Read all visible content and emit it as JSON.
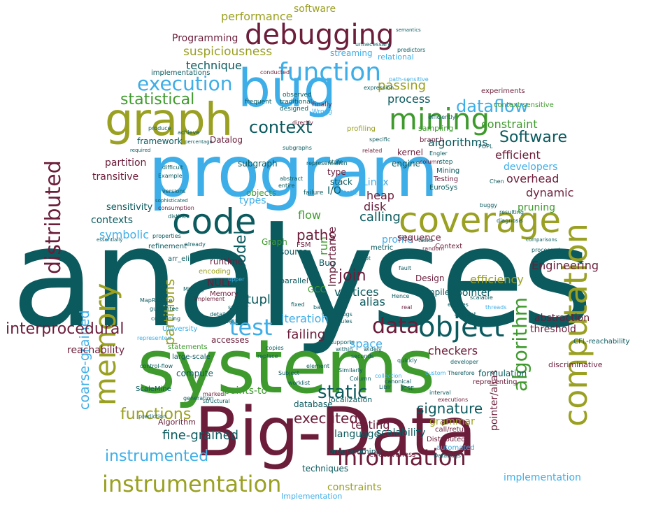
{
  "palette": {
    "teal": "#0b5a5e",
    "sky": "#3eaee8",
    "olive": "#9aa021",
    "green": "#3f9a2e",
    "maroon": "#6b1d3a"
  },
  "words": {
    "analyses": "analyses",
    "systems": "systems",
    "big_data": "Big-Data",
    "program": "program",
    "bug": "bug",
    "graph": "graph",
    "code": "code",
    "coverage": "coverage",
    "computation": "computation",
    "memory": "memory",
    "debugging": "debugging",
    "function": "function",
    "mining": "mining",
    "execution": "execution",
    "object": "object",
    "test": "test",
    "data": "data",
    "context": "context",
    "statistical": "statistical",
    "dataflow": "dataflow",
    "information": "information",
    "instrumentation": "instrumentation",
    "distributed": "distributed",
    "algorithm": "algorithm",
    "interprocedural": "interprocedural",
    "software_top": "software",
    "performance": "performance",
    "programming_top": "Programming",
    "suspiciousness": "suspiciousness",
    "technique": "technique",
    "passing": "passing",
    "process": "process",
    "constraint": "constraint",
    "software_mid": "Software",
    "algorithms": "algorithms",
    "efficient": "efficient",
    "developers": "developers",
    "overhead": "overhead",
    "partition": "partition",
    "transitive": "transitive",
    "dynamic": "dynamic",
    "pruning": "pruning",
    "sensitivity": "sensitivity",
    "contexts": "contexts",
    "symbolic": "symbolic",
    "calling": "calling",
    "paths": "paths",
    "flow": "flow",
    "heap": "heap",
    "disk": "disk",
    "linux": "Linux",
    "run": "run",
    "model": "model",
    "profile": "profile",
    "sequence": "sequence",
    "join": "join",
    "vertices": "vertices",
    "partitions": "partitions",
    "tuple": "tuple",
    "alias": "alias",
    "null": "NULL",
    "pointer": "pointer",
    "efficiency": "efficiency",
    "engineering": "Engineering",
    "importance": "Importance",
    "iteration": "iteration",
    "failing": "failing",
    "space": "space",
    "checkers": "checkers",
    "abstraction": "abstraction",
    "threshold": "threshold",
    "reachability": "reachability",
    "coarse_grained": "coarse-grained",
    "functions": "functions",
    "static": "static",
    "executed": "executed",
    "signature": "signature",
    "fine_grained": "fine-grained",
    "instrumented": "instrumented",
    "testing": "testing",
    "grammar": "grammar",
    "pointer_alias": "pointer/alias",
    "language": "language",
    "scalability": "scalability",
    "implementation": "implementation",
    "techniques": "techniques",
    "constraints": "constraints",
    "implementation_cap": "Implementation",
    "compute": "compute",
    "points_to": "points-to",
    "accesses": "accesses",
    "graph_small": "Graph",
    "objects": "objects",
    "types": "types",
    "subgraph": "subgraph",
    "type": "type",
    "stack": "stack",
    "io": "I/O",
    "kernel": "kernel",
    "engine": "engine",
    "datalog": "Datalog",
    "framework": "framework",
    "streaming": "streaming",
    "relational": "relational",
    "implementations": "implementations",
    "experiments": "experiments",
    "sampling": "sampling",
    "context_sensitive": "context-sensitive",
    "refinement": "refinement",
    "runtime": "runtime",
    "memory_cap": "Memory",
    "bug_small": "Bug",
    "source": "source",
    "gcc": "GCC",
    "design": "Design",
    "compiler": "compiler",
    "arr_elim": "arr_elim",
    "encoding": "encoding",
    "parallel": "parallel",
    "mining_cap": "Mining",
    "testing_cap": "Testing",
    "eurosys": "EuroSys",
    "statements": "statements",
    "large_scale": "large-scale",
    "university": "University",
    "scalemine": "ScaleMine",
    "algorithm_cap": "Algorithm",
    "database": "database",
    "localization": "localization",
    "cfl_reachability": "CFL-reachability",
    "discriminative": "discriminative",
    "formulation": "formulation",
    "representing": "representing",
    "call_return": "call/return",
    "distributed_cap": "Distributed",
    "effectiveness": "effectiveness",
    "programming": "programming",
    "bugs": "Bugs",
    "clang": "Clang",
    "fsm": "FSM",
    "metric": "metric",
    "static_cap": "Static",
    "worklist": "worklist",
    "subject": "Subject",
    "column": "column",
    "branch": "branch",
    "profiling": "profiling",
    "observed": "observed",
    "traditional": "traditional",
    "designed": "designed",
    "frequent": "frequent",
    "finally": "Finally",
    "wrong": "Wrong",
    "subgraphs": "subgraphs",
    "example": "Example",
    "versions": "versions",
    "failure": "failure",
    "representation": "representation",
    "directly": "directly",
    "conducted": "conducted",
    "unnecessary": "unnecessary",
    "predictors": "predictors",
    "semantics": "semantics",
    "abstract": "abstract",
    "entire": "entire",
    "properties": "properties",
    "distinct": "distinct",
    "consumption": "consumption",
    "sophisticated": "sophisticated",
    "produce": "produce",
    "achieve": "achieve",
    "percentage": "percentage",
    "expression": "expression",
    "path_sensitive": "path-sensitive",
    "efficiently": "efficiently",
    "specific": "specific",
    "related": "related",
    "popl": "POPL",
    "step": "step",
    "engler": "Engler",
    "missing": "Missing",
    "implement": "implement",
    "upper": "upper",
    "smaller": "smaller",
    "detailed": "detailed",
    "basic": "basic",
    "fixed": "fixed",
    "real": "real",
    "hence": "Hence",
    "resulting": "resulting",
    "diagnosis": "diagnosis",
    "entities": "entities",
    "threads": "threads",
    "scalable": "scalable",
    "processed": "processed",
    "comparisons": "comparisons",
    "developer": "developer",
    "therefore": "Therefore",
    "quickly": "quickly",
    "seconds": "seconds",
    "within": "within",
    "supports": "supports",
    "widely": "widely",
    "similarly": "Similarly",
    "collection": "collection",
    "custom": "custom",
    "copies": "copies",
    "replace": "replace",
    "generation": "generation",
    "marked": "marked",
    "structural": "structural",
    "guarantee": "guarantee",
    "containing": "containing",
    "represented": "represented",
    "mapreduce": "MapReduce",
    "control_flow": "control-flow",
    "prediction": "prediction",
    "executions": "executions",
    "interval": "interval",
    "icse": "ICSE",
    "libir": "LibIr",
    "canonical": "canonical",
    "automated": "automated",
    "databugs": "DataBugs",
    "rules": "rules",
    "essentially": "essentially",
    "chen": "Chen",
    "buggy": "buggy",
    "already": "already",
    "required": "required",
    "difficult": "difficult",
    "column_cap": "Column",
    "root": "root",
    "tasks": "tasks",
    "random": "random",
    "context_cap": "Context",
    "fault": "fault",
    "state": "state",
    "easily": "easily",
    "element": "element",
    "amount": "amount"
  }
}
